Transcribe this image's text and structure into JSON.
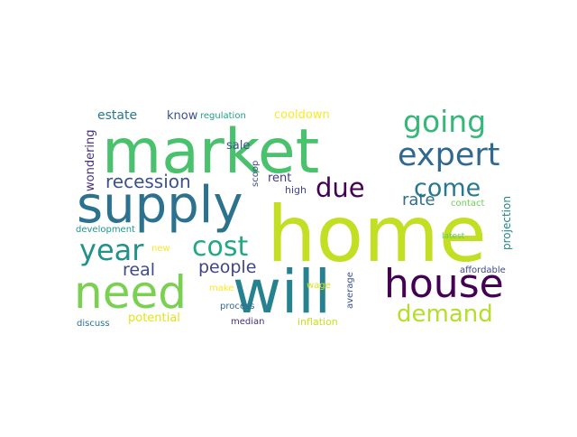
{
  "words": [
    {
      "text": "home",
      "color": "#c2df23"
    },
    {
      "text": "market",
      "color": "#4ac16d"
    },
    {
      "text": "supply",
      "color": "#2c728e"
    },
    {
      "text": "will",
      "color": "#26828e"
    },
    {
      "text": "need",
      "color": "#7ad151"
    },
    {
      "text": "house",
      "color": "#440154"
    },
    {
      "text": "expert",
      "color": "#31688e"
    },
    {
      "text": "going",
      "color": "#35b779"
    },
    {
      "text": "come",
      "color": "#2a788e"
    },
    {
      "text": "demand",
      "color": "#b5de2b"
    },
    {
      "text": "year",
      "color": "#21918c"
    },
    {
      "text": "cost",
      "color": "#22a884"
    },
    {
      "text": "due",
      "color": "#440154"
    },
    {
      "text": "recession",
      "color": "#3b528b"
    },
    {
      "text": "rate",
      "color": "#2e6f8e"
    },
    {
      "text": "real",
      "color": "#3e4a89"
    },
    {
      "text": "people",
      "color": "#414487"
    },
    {
      "text": "estate",
      "color": "#2a788e"
    },
    {
      "text": "know",
      "color": "#3b528b"
    },
    {
      "text": "regulation",
      "color": "#1fa187"
    },
    {
      "text": "cooldown",
      "color": "#fde725"
    },
    {
      "text": "wondering",
      "color": "#46327e"
    },
    {
      "text": "sale",
      "color": "#39568c"
    },
    {
      "text": "scoop",
      "color": "#3e4a89"
    },
    {
      "text": "rent",
      "color": "#443983"
    },
    {
      "text": "high",
      "color": "#404688"
    },
    {
      "text": "projection",
      "color": "#25858e"
    },
    {
      "text": "contact",
      "color": "#6ece58"
    },
    {
      "text": "latest",
      "color": "#5ec962"
    },
    {
      "text": "development",
      "color": "#1f968b"
    },
    {
      "text": "new",
      "color": "#fde725"
    },
    {
      "text": "make",
      "color": "#fde725"
    },
    {
      "text": "wage",
      "color": "#dde318"
    },
    {
      "text": "average",
      "color": "#3b528b"
    },
    {
      "text": "affordable",
      "color": "#3e4a89"
    },
    {
      "text": "process",
      "color": "#31688e"
    },
    {
      "text": "potential",
      "color": "#e2e418"
    },
    {
      "text": "discuss",
      "color": "#2c728e"
    },
    {
      "text": "median",
      "color": "#472d7b"
    },
    {
      "text": "inflation",
      "color": "#c8e020"
    }
  ]
}
